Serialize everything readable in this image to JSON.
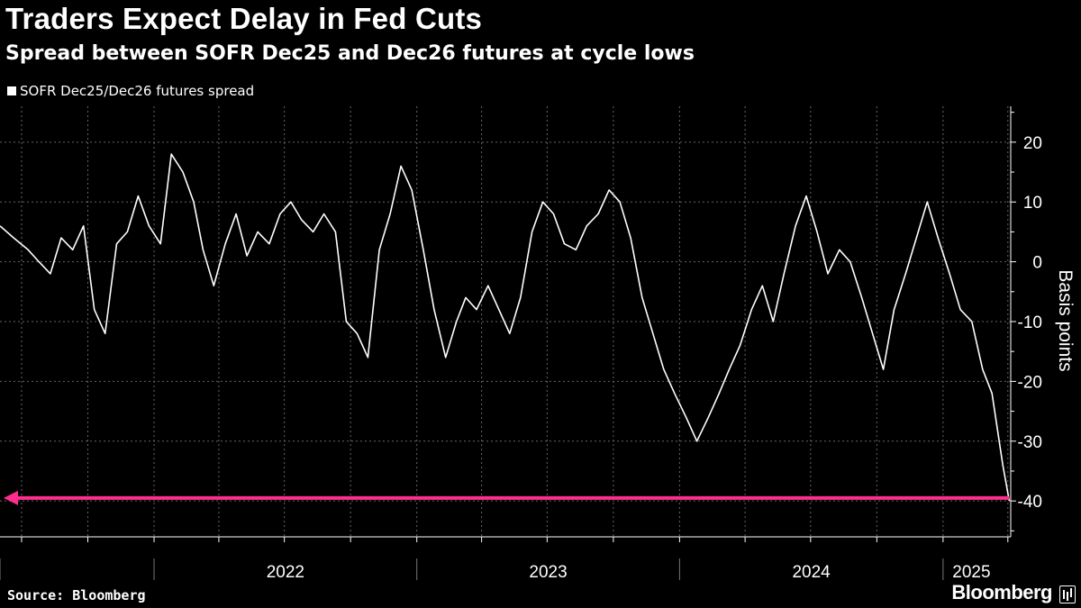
{
  "title": "Traders Expect Delay in Fed Cuts",
  "subtitle": "Spread between SOFR Dec25 and Dec26 futures at cycle lows",
  "source": "Source: Bloomberg",
  "brand": "Bloomberg",
  "colors": {
    "background": "#000000",
    "series": "#ffffff",
    "annotation": "#ff2e8e",
    "grid": "#666666"
  },
  "chart_data": {
    "type": "line",
    "ylabel": "Basis points",
    "ylim": [
      -46,
      26
    ],
    "y_ticks": [
      20,
      10,
      0,
      -10,
      -20,
      -30,
      -40
    ],
    "y_tick_labels": [
      "20",
      "10",
      "0",
      "-10",
      "-20",
      "-30",
      "-40"
    ],
    "x_range": [
      "2021-06-01",
      "2025-04-05"
    ],
    "x_tick_labels": [
      {
        "date": "2022-01-01",
        "label": "2022"
      },
      {
        "date": "2023-01-01",
        "label": "2023"
      },
      {
        "date": "2024-01-01",
        "label": "2024"
      },
      {
        "date": "2025-01-01",
        "label": "2025"
      }
    ],
    "grid": true,
    "legend": "top-left",
    "series": [
      {
        "name": "SOFR Dec25/Dec26 futures spread",
        "x": [
          "2021-06-01",
          "2021-06-20",
          "2021-07-10",
          "2021-07-25",
          "2021-08-10",
          "2021-08-25",
          "2021-09-10",
          "2021-09-25",
          "2021-10-10",
          "2021-10-25",
          "2021-11-10",
          "2021-11-25",
          "2021-12-10",
          "2021-12-25",
          "2022-01-10",
          "2022-01-25",
          "2022-02-10",
          "2022-02-25",
          "2022-03-10",
          "2022-03-25",
          "2022-04-10",
          "2022-04-25",
          "2022-05-10",
          "2022-05-25",
          "2022-06-10",
          "2022-06-25",
          "2022-07-10",
          "2022-07-25",
          "2022-08-10",
          "2022-08-25",
          "2022-09-10",
          "2022-09-25",
          "2022-10-10",
          "2022-10-25",
          "2022-11-10",
          "2022-11-25",
          "2022-12-10",
          "2022-12-25",
          "2023-01-10",
          "2023-01-25",
          "2023-02-10",
          "2023-02-25",
          "2023-03-10",
          "2023-03-25",
          "2023-04-10",
          "2023-04-25",
          "2023-05-10",
          "2023-05-25",
          "2023-06-10",
          "2023-06-25",
          "2023-07-10",
          "2023-07-25",
          "2023-08-10",
          "2023-08-25",
          "2023-09-10",
          "2023-09-25",
          "2023-10-10",
          "2023-10-25",
          "2023-11-10",
          "2023-11-25",
          "2023-12-10",
          "2023-12-25",
          "2024-01-10",
          "2024-01-25",
          "2024-02-10",
          "2024-02-25",
          "2024-03-10",
          "2024-03-25",
          "2024-04-10",
          "2024-04-25",
          "2024-05-10",
          "2024-05-25",
          "2024-06-10",
          "2024-06-25",
          "2024-07-10",
          "2024-07-25",
          "2024-08-10",
          "2024-08-25",
          "2024-09-10",
          "2024-09-25",
          "2024-10-10",
          "2024-10-25",
          "2024-11-10",
          "2024-11-25",
          "2024-12-10",
          "2024-12-25",
          "2025-01-10",
          "2025-01-25",
          "2025-02-10",
          "2025-02-25",
          "2025-03-10",
          "2025-03-25",
          "2025-04-03"
        ],
        "values": [
          6,
          4,
          2,
          0,
          -2,
          4,
          2,
          6,
          -8,
          -12,
          3,
          5,
          11,
          6,
          3,
          18,
          15,
          10,
          2,
          -4,
          3,
          8,
          1,
          5,
          3,
          8,
          10,
          7,
          5,
          8,
          5,
          -10,
          -12,
          -16,
          2,
          8,
          16,
          12,
          2,
          -8,
          -16,
          -10,
          -6,
          -8,
          -4,
          -8,
          -12,
          -6,
          5,
          10,
          8,
          3,
          2,
          6,
          8,
          12,
          10,
          4,
          -6,
          -12,
          -18,
          -22,
          -26,
          -30,
          -26,
          -22,
          -18,
          -14,
          -8,
          -4,
          -10,
          -2,
          6,
          11,
          5,
          -2,
          2,
          0,
          -6,
          -12,
          -18,
          -8,
          -2,
          4,
          10,
          4,
          -2,
          -8,
          -10,
          -18,
          -22,
          -34,
          -40
        ],
        "color": "#ffffff"
      }
    ],
    "annotations": [
      {
        "type": "arrow",
        "direction": "left",
        "y": -39.5,
        "color": "#ff2e8e"
      }
    ]
  }
}
